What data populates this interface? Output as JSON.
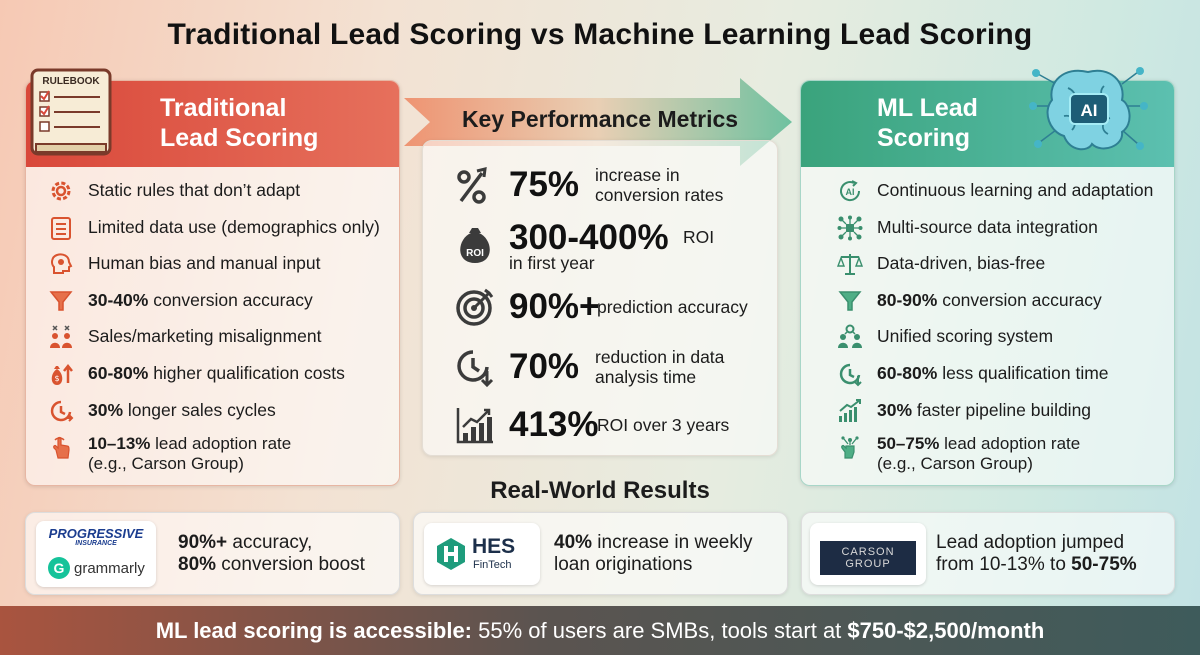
{
  "title": "Traditional Lead Scoring vs Machine Learning Lead Scoring",
  "traditional": {
    "title_line1": "Traditional",
    "title_line2": "Lead Scoring",
    "rulebook_label": "RULEBOOK",
    "items": [
      {
        "icon": "gear-icon",
        "bold": "",
        "text": "Static rules that don’t adapt"
      },
      {
        "icon": "checklist-icon",
        "bold": "",
        "text": "Limited data use (demographics only)"
      },
      {
        "icon": "head-gears-icon",
        "bold": "",
        "text": "Human bias and manual input"
      },
      {
        "icon": "funnel-icon",
        "bold": "30-40%",
        "text": " conversion accuracy"
      },
      {
        "icon": "misaligned-people-icon",
        "bold": "",
        "text": "Sales/marketing misalignment"
      },
      {
        "icon": "money-bag-up-icon",
        "bold": "60-80%",
        "text": " higher qualification costs"
      },
      {
        "icon": "clock-arrow-icon",
        "bold": "30%",
        "text": " longer sales cycles"
      },
      {
        "icon": "hand-pointer-icon",
        "bold": "10–13%",
        "text": " lead adoption rate",
        "line2": "(e.g., Carson Group)"
      }
    ]
  },
  "ml": {
    "title_line1": "ML Lead",
    "title_line2": "Scoring",
    "ai_label": "AI",
    "items": [
      {
        "icon": "ai-cycle-icon",
        "bold": "",
        "text": "Continuous learning and adaptation"
      },
      {
        "icon": "network-nodes-icon",
        "bold": "",
        "text": "Multi-source data integration"
      },
      {
        "icon": "scales-icon",
        "bold": "",
        "text": "Data-driven, bias-free"
      },
      {
        "icon": "funnel-icon",
        "bold": "80-90%",
        "text": " conversion accuracy"
      },
      {
        "icon": "unified-people-icon",
        "bold": "",
        "text": "Unified scoring system"
      },
      {
        "icon": "clock-down-icon",
        "bold": "60-80%",
        "text": " less qualification time"
      },
      {
        "icon": "bar-growth-icon",
        "bold": "30%",
        "text": " faster pipeline building"
      },
      {
        "icon": "hand-growth-icon",
        "bold": "50–75%",
        "text": " lead adoption rate",
        "line2": "(e.g., Carson Group)"
      }
    ]
  },
  "metrics": {
    "title": "Key Performance Metrics",
    "items": [
      {
        "icon": "percent-arrow-icon",
        "value": "75%",
        "desc1": "increase in",
        "desc2": "conversion rates"
      },
      {
        "icon": "roi-bag-icon",
        "icon_label": "ROI",
        "value": "300-400%",
        "desc1": "ROI",
        "desc2": "in first year"
      },
      {
        "icon": "target-icon",
        "value": "90%+",
        "desc1": "prediction accuracy",
        "desc2": ""
      },
      {
        "icon": "clock-down-icon",
        "value": "70%",
        "desc1": "reduction in data",
        "desc2": "analysis time"
      },
      {
        "icon": "bar-chart-up-icon",
        "value": "413%",
        "desc1": "ROI over 3 years",
        "desc2": ""
      }
    ]
  },
  "results": {
    "title": "Real-World Results",
    "cards": [
      {
        "logo1": "PROGRESSIVE",
        "logo1_sub": "INSURANCE",
        "logo2": "grammarly",
        "logo2_mark": "G",
        "bold1": "90%+",
        "text1": " accuracy,",
        "bold2": "80%",
        "text2": " conversion boost"
      },
      {
        "logo": "HES",
        "logo_sub": "FinTech",
        "bold1": "40%",
        "text1": " increase in weekly",
        "text2": "loan originations"
      },
      {
        "logo": "CARSON",
        "logo_sub": "GROUP",
        "text1": "Lead adoption jumped",
        "text2a": "from 10-13% to ",
        "bold2": "50-75%"
      }
    ]
  },
  "footer": {
    "bold1": "ML lead scoring is accessible:",
    "part2": " 55% ",
    "part3": "of users are SMBs, tools start at ",
    "bold4": "$750-$2,500/month"
  },
  "colors": {
    "traditional_accent": "#d9483a",
    "ml_accent": "#3aa37c",
    "icon_orange": "#d9532f",
    "icon_green": "#3a8f6e",
    "metric_icon": "#3b3b3b"
  }
}
